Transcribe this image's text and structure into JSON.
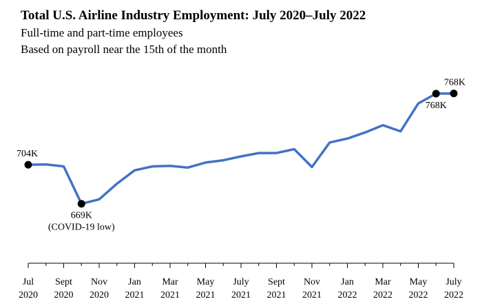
{
  "chart_data": {
    "type": "line",
    "title": "Total U.S. Airline Industry Employment: July 2020–July 2022",
    "subtitle_lines": [
      "Full-time and part-time employees",
      "Based on payroll near the 15th of the month"
    ],
    "x": [
      "Jul 2020",
      "Aug 2020",
      "Sept 2020",
      "Oct 2020",
      "Nov 2020",
      "Dec 2020",
      "Jan 2021",
      "Feb 2021",
      "Mar 2021",
      "Apr 2021",
      "May 2021",
      "Jun 2021",
      "July 2021",
      "Aug 2021",
      "Sept 2021",
      "Oct 2021",
      "Nov 2021",
      "Dec 2021",
      "Jan 2022",
      "Feb 2022",
      "Mar 2022",
      "Apr 2022",
      "May 2022",
      "Jun 2022",
      "July 2022"
    ],
    "series": [
      {
        "values": [
          704,
          704.3,
          702.5,
          669,
          673,
          687,
          699,
          702.5,
          703,
          701.5,
          706,
          708,
          711.5,
          714.5,
          714.5,
          718,
          702,
          724,
          727.5,
          733,
          739.5,
          734,
          759,
          767.8,
          768
        ]
      }
    ],
    "ylim": [
      620,
      790
    ],
    "color": "#4472c4",
    "grid": false,
    "x_ticks": [
      {
        "index": 0,
        "month": "Jul",
        "year": "2020"
      },
      {
        "index": 2,
        "month": "Sept",
        "year": "2020"
      },
      {
        "index": 4,
        "month": "Nov",
        "year": "2020"
      },
      {
        "index": 6,
        "month": "Jan",
        "year": "2021"
      },
      {
        "index": 8,
        "month": "Mar",
        "year": "2021"
      },
      {
        "index": 10,
        "month": "May",
        "year": "2021"
      },
      {
        "index": 12,
        "month": "July",
        "year": "2021"
      },
      {
        "index": 14,
        "month": "Sept",
        "year": "2021"
      },
      {
        "index": 16,
        "month": "Nov",
        "year": "2021"
      },
      {
        "index": 18,
        "month": "Jan",
        "year": "2022"
      },
      {
        "index": 20,
        "month": "Mar",
        "year": "2022"
      },
      {
        "index": 22,
        "month": "May",
        "year": "2022"
      },
      {
        "index": 24,
        "month": "July",
        "year": "2022"
      }
    ],
    "annotations": [
      {
        "index": 0,
        "lines": [
          "704K"
        ],
        "position": "above"
      },
      {
        "index": 3,
        "lines": [
          "669K",
          "(COVID-19 low)"
        ],
        "position": "below"
      },
      {
        "index": 23,
        "lines": [
          "768K"
        ],
        "position": "below"
      },
      {
        "index": 24,
        "lines": [
          "768K"
        ],
        "position": "above"
      }
    ]
  }
}
